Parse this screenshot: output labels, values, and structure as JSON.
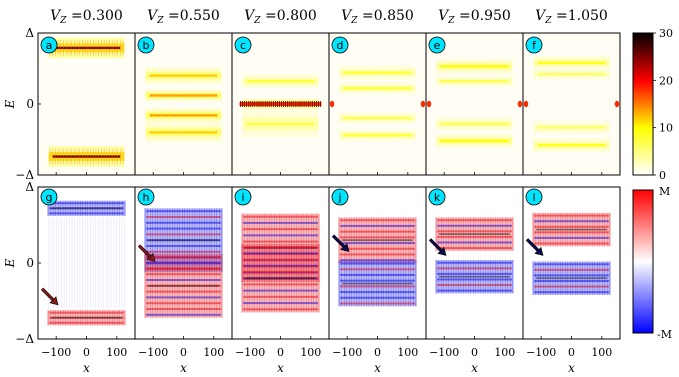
{
  "figure": {
    "column_titles": [
      "V_Z =0.300",
      "V_Z =0.550",
      "V_Z =0.800",
      "V_Z =0.850",
      "V_Z =0.950",
      "V_Z =1.050"
    ],
    "ylabel": "E",
    "xlabel": "x",
    "y_ticks_top": [
      "Δ",
      "0",
      "−Δ"
    ],
    "y_ticks_bottom": [
      "Δ",
      "0",
      "−Δ"
    ],
    "x_ticks": [
      "−100",
      "0",
      "100"
    ],
    "panel_letters_top": [
      "a",
      "b",
      "c",
      "d",
      "e",
      "f"
    ],
    "panel_letters_bottom": [
      "g",
      "h",
      "i",
      "j",
      "k",
      "l"
    ],
    "colorbar_top": {
      "ticks": [
        "0",
        "10",
        "20",
        "30"
      ],
      "colors": [
        "#ffffff",
        "#ffff00",
        "#ff0000",
        "#000000"
      ]
    },
    "colorbar_bottom": {
      "ticks": [
        "M",
        "-M"
      ],
      "colors": [
        "#ff0000",
        "#ffffff",
        "#0000ff"
      ]
    },
    "badge_color": "#00e5ff",
    "arrow_colors": [
      "#8b1a1a",
      "#8b1a1a",
      "#0a0a50",
      "#0a0a50",
      "#0a0a50",
      "#0a0a50"
    ]
  },
  "chart_data": {
    "type": "heatmap",
    "x_range": [
      -160,
      160
    ],
    "y_range": [
      -1,
      1
    ],
    "panels_top": [
      {
        "V_Z": 0.3,
        "bands": [
          {
            "E": 0.79,
            "w": 0.09,
            "I": 25
          },
          {
            "E": -0.74,
            "w": 0.09,
            "I": 25
          }
        ]
      },
      {
        "V_Z": 0.55,
        "bands": [
          {
            "E": 0.4,
            "w": 0.07,
            "I": 12
          },
          {
            "E": 0.12,
            "w": 0.05,
            "I": 14
          },
          {
            "E": -0.16,
            "w": 0.06,
            "I": 14
          },
          {
            "E": -0.4,
            "w": 0.08,
            "I": 12
          }
        ]
      },
      {
        "V_Z": 0.8,
        "bands": [
          {
            "E": 0.32,
            "w": 0.06,
            "I": 8
          },
          {
            "E": 0.0,
            "w": 0.04,
            "I": 22
          },
          {
            "E": -0.28,
            "w": 0.12,
            "I": 8
          }
        ]
      },
      {
        "V_Z": 0.85,
        "bands": [
          {
            "E": 0.44,
            "w": 0.06,
            "I": 8
          },
          {
            "E": 0.22,
            "w": 0.05,
            "I": 8
          },
          {
            "E": -0.2,
            "w": 0.05,
            "I": 7
          },
          {
            "E": -0.44,
            "w": 0.05,
            "I": 8
          }
        ]
      },
      {
        "V_Z": 0.95,
        "bands": [
          {
            "E": 0.53,
            "w": 0.06,
            "I": 10
          },
          {
            "E": 0.32,
            "w": 0.05,
            "I": 7
          },
          {
            "E": -0.28,
            "w": 0.06,
            "I": 7
          },
          {
            "E": -0.52,
            "w": 0.06,
            "I": 10
          }
        ]
      },
      {
        "V_Z": 1.05,
        "bands": [
          {
            "E": 0.58,
            "w": 0.06,
            "I": 9
          },
          {
            "E": 0.42,
            "w": 0.05,
            "I": 6
          },
          {
            "E": -0.33,
            "w": 0.06,
            "I": 6
          },
          {
            "E": -0.58,
            "w": 0.06,
            "I": 9
          }
        ]
      }
    ],
    "panels_bottom": [
      {
        "V_Z": 0.3,
        "upper": "blue",
        "lower": "red"
      },
      {
        "V_Z": 0.55,
        "upper": "blue",
        "lower": "red"
      },
      {
        "V_Z": 0.8,
        "upper": "mixed",
        "lower": "mixed"
      },
      {
        "V_Z": 0.85,
        "upper": "red",
        "lower": "blue"
      },
      {
        "V_Z": 0.95,
        "upper": "red",
        "lower": "blue"
      },
      {
        "V_Z": 1.05,
        "upper": "red",
        "lower": "blue"
      }
    ],
    "colorbar_top_range": [
      0,
      30
    ],
    "colorbar_bottom_range": [
      "-M",
      "M"
    ]
  }
}
